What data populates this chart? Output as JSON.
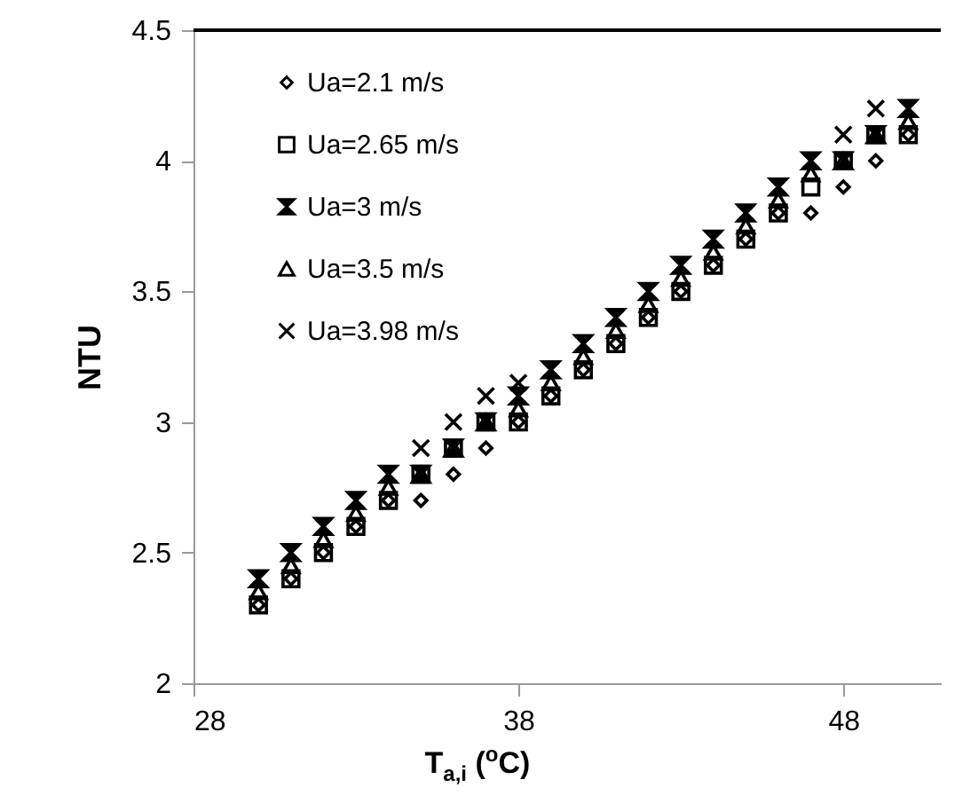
{
  "chart_data": {
    "type": "scatter",
    "xlabel": "T$_{a,i}$ ($^{o}$C)",
    "ylabel": "NTU",
    "x": [
      30,
      31,
      32,
      33,
      34,
      35,
      36,
      37,
      38,
      39,
      40,
      41,
      42,
      43,
      44,
      45,
      46,
      47,
      48,
      49,
      50
    ],
    "xlim": [
      28,
      51
    ],
    "xticks": [
      28,
      38,
      48
    ],
    "ylim": [
      2,
      4.5
    ],
    "yticks": [
      2,
      2.5,
      3,
      3.5,
      4,
      4.5
    ],
    "grid": false,
    "legend": "top left",
    "series": [
      {
        "name": "Ua=2.1 m/s",
        "color": "#000000",
        "marker": "diamond",
        "values": [
          2.3,
          2.4,
          2.5,
          2.6,
          2.7,
          2.7,
          2.8,
          2.9,
          3.0,
          3.1,
          3.2,
          3.3,
          3.4,
          3.5,
          3.6,
          3.7,
          3.8,
          3.8,
          3.9,
          4.0,
          4.1
        ]
      },
      {
        "name": "Ua=2.65 m/s",
        "color": "#000000",
        "marker": "square",
        "values": [
          2.3,
          2.4,
          2.5,
          2.6,
          2.7,
          2.8,
          2.9,
          3.0,
          3.0,
          3.1,
          3.2,
          3.3,
          3.4,
          3.5,
          3.6,
          3.7,
          3.8,
          3.9,
          4.0,
          4.1,
          4.1
        ]
      },
      {
        "name": "Ua=3 m/s",
        "color": "#000000",
        "marker": "star",
        "values": [
          2.4,
          2.5,
          2.6,
          2.7,
          2.8,
          2.8,
          2.9,
          3.0,
          3.1,
          3.2,
          3.3,
          3.4,
          3.5,
          3.6,
          3.7,
          3.8,
          3.9,
          4.0,
          4.0,
          4.1,
          4.2
        ]
      },
      {
        "name": "Ua=3.5 m/s",
        "color": "#000000",
        "marker": "triangle",
        "values": [
          2.35,
          2.45,
          2.55,
          2.65,
          2.75,
          2.8,
          2.9,
          3.0,
          3.05,
          3.15,
          3.25,
          3.35,
          3.45,
          3.55,
          3.65,
          3.75,
          3.85,
          3.95,
          4.0,
          4.1,
          4.15
        ]
      },
      {
        "name": "Ua=3.98 m/s",
        "color": "#000000",
        "marker": "cross",
        "values": [
          2.4,
          2.5,
          2.6,
          2.7,
          2.8,
          2.9,
          3.0,
          3.1,
          3.15,
          3.2,
          3.3,
          3.4,
          3.5,
          3.6,
          3.7,
          3.8,
          3.9,
          4.0,
          4.1,
          4.2,
          4.2
        ]
      }
    ]
  }
}
